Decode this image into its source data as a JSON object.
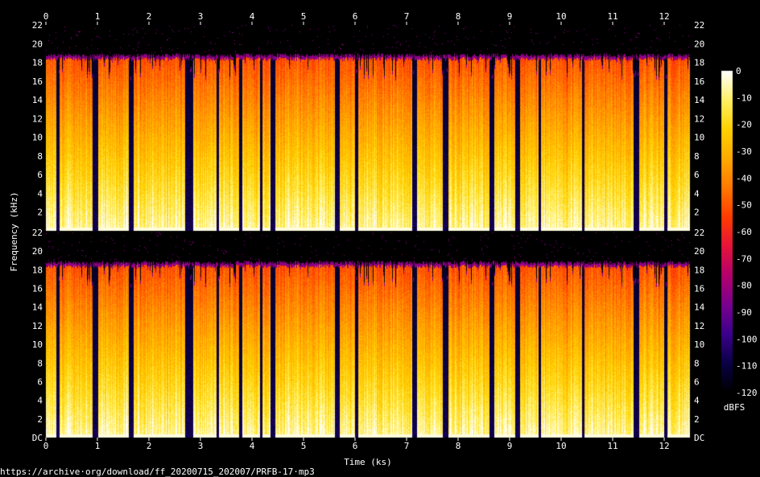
{
  "chart_data": {
    "type": "heatmap",
    "title": "",
    "xlabel": "Time (ks)",
    "ylabel": "Frequency (kHz)",
    "colorbar_label": "dBFS",
    "source_url": "https://archive·org/download/ff_20200715_202007/PRFB-17·mp3",
    "x_ticks": [
      "0",
      "1",
      "2",
      "3",
      "4",
      "5",
      "6",
      "7",
      "8",
      "9",
      "10",
      "11",
      "12"
    ],
    "xlim": [
      0,
      12.5
    ],
    "y_ticks": [
      "2",
      "4",
      "6",
      "8",
      "10",
      "12",
      "14",
      "16",
      "18",
      "20",
      "22"
    ],
    "y_ticks_bottom": [
      "DC",
      "2",
      "4",
      "6",
      "8",
      "10",
      "12",
      "14",
      "16",
      "18",
      "20",
      "22"
    ],
    "ylim": [
      0,
      22
    ],
    "colorbar_ticks": [
      "0",
      "-10",
      "-20",
      "-30",
      "-40",
      "-50",
      "-60",
      "-70",
      "-80",
      "-90",
      "-100",
      "-110",
      "-120"
    ],
    "colorbar_range": [
      -120,
      0
    ],
    "colormap": [
      "#000000",
      "#0a0046",
      "#3c008c",
      "#7a0090",
      "#b4006e",
      "#e6143c",
      "#ff3c00",
      "#ff7800",
      "#ffaa00",
      "#ffd200",
      "#fff064",
      "#ffffff"
    ],
    "channels": [
      "left",
      "right"
    ],
    "cutoff_khz": 19,
    "silence_segments_ks": [
      [
        0.2,
        0.25
      ],
      [
        0.9,
        1.0
      ],
      [
        1.6,
        1.7
      ],
      [
        2.7,
        2.85
      ],
      [
        3.3,
        3.35
      ],
      [
        3.75,
        3.8
      ],
      [
        4.15,
        4.2
      ],
      [
        4.35,
        4.45
      ],
      [
        5.6,
        5.7
      ],
      [
        6.0,
        6.05
      ],
      [
        7.1,
        7.2
      ],
      [
        7.7,
        7.8
      ],
      [
        8.6,
        8.7
      ],
      [
        9.1,
        9.2
      ],
      [
        9.55,
        9.6
      ],
      [
        10.4,
        10.45
      ],
      [
        11.4,
        11.5
      ],
      [
        12.0,
        12.05
      ]
    ]
  }
}
